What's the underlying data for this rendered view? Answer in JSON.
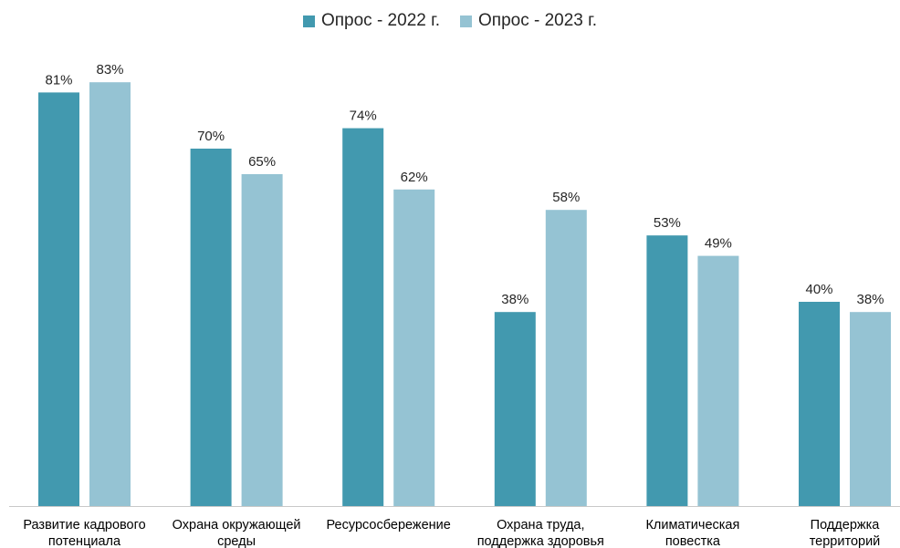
{
  "chart_data": {
    "type": "bar",
    "categories": [
      [
        "Развитие кадрового",
        "потенциала"
      ],
      [
        "Охрана окружающей",
        "среды"
      ],
      [
        "Ресурсосбережение"
      ],
      [
        "Охрана труда,",
        "поддержка здоровья"
      ],
      [
        "Климатическая",
        "повестка"
      ],
      [
        "Поддержка",
        "территорий"
      ]
    ],
    "series": [
      {
        "name": "Опрос - 2022 г.",
        "color": "#4299AF",
        "values": [
          81,
          70,
          74,
          38,
          53,
          40
        ],
        "labels": [
          "81%",
          "70%",
          "74%",
          "38%",
          "53%",
          "40%"
        ]
      },
      {
        "name": "Опрос - 2023 г.",
        "color": "#95C3D3",
        "values": [
          83,
          65,
          62,
          58,
          49,
          38
        ],
        "labels": [
          "83%",
          "65%",
          "62%",
          "58%",
          "49%",
          "38%"
        ]
      }
    ],
    "ylim": [
      0,
      100
    ],
    "grid": false,
    "legend_position": "top-center",
    "title": "",
    "xlabel": "",
    "ylabel": ""
  }
}
